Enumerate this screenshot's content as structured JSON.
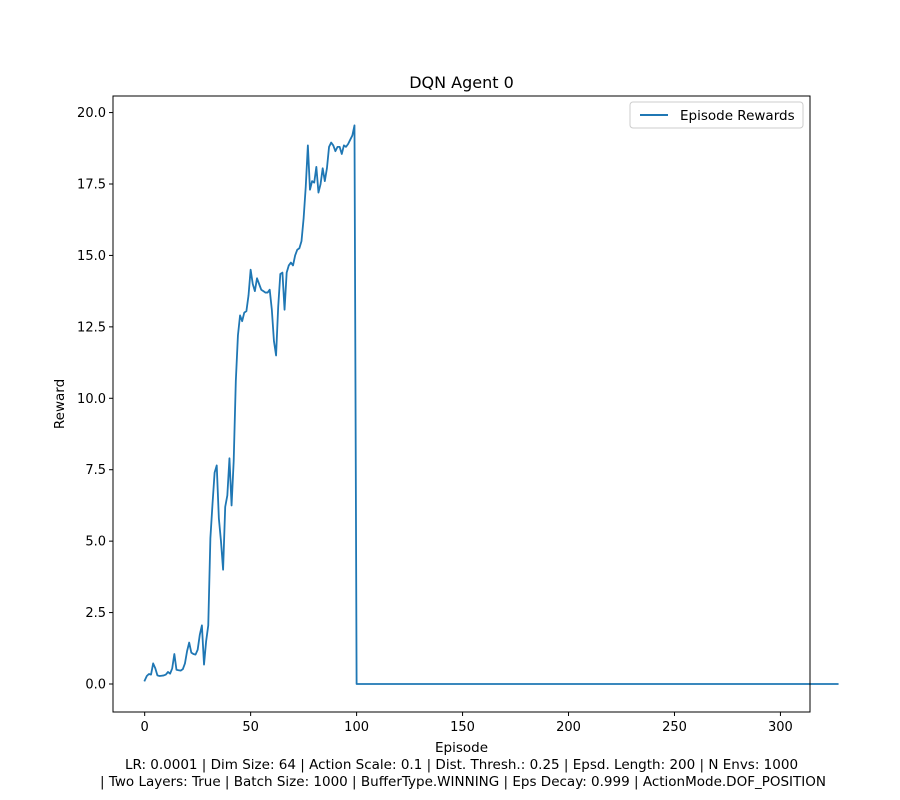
{
  "chart_data": {
    "type": "line",
    "title": "DQN Agent 0",
    "xlabel": "Episode",
    "ylabel": "Reward",
    "xlim": [
      -14.95,
      313.95
    ],
    "ylim": [
      -0.98,
      20.58
    ],
    "xticks": [
      0,
      50,
      100,
      150,
      200,
      250,
      300
    ],
    "yticks": [
      0.0,
      2.5,
      5.0,
      7.5,
      10.0,
      12.5,
      15.0,
      17.5,
      20.0
    ],
    "xtick_labels": [
      "0",
      "50",
      "100",
      "150",
      "200",
      "250",
      "300"
    ],
    "ytick_labels": [
      "0.0",
      "2.5",
      "5.0",
      "7.5",
      "10.0",
      "12.5",
      "15.0",
      "17.5",
      "20.0"
    ],
    "legend": {
      "position": "upper-right",
      "entries": [
        "Episode Rewards"
      ]
    },
    "grid": false,
    "series": [
      {
        "name": "Episode Rewards",
        "color": "#1f77b4",
        "x_start": 0,
        "values": [
          0.12,
          0.28,
          0.35,
          0.33,
          0.72,
          0.55,
          0.3,
          0.28,
          0.29,
          0.3,
          0.33,
          0.42,
          0.36,
          0.55,
          1.05,
          0.5,
          0.48,
          0.47,
          0.52,
          0.72,
          1.15,
          1.45,
          1.1,
          1.05,
          1.03,
          1.2,
          1.72,
          2.05,
          0.68,
          1.5,
          2.05,
          5.1,
          6.3,
          7.4,
          7.65,
          5.8,
          5.0,
          4.0,
          6.2,
          6.6,
          7.9,
          6.25,
          7.8,
          10.6,
          12.2,
          12.9,
          12.7,
          13.0,
          13.05,
          13.6,
          14.5,
          14.0,
          13.75,
          14.2,
          14.0,
          13.8,
          13.75,
          13.7,
          13.7,
          13.8,
          13.1,
          12.0,
          11.5,
          13.2,
          14.35,
          14.4,
          13.1,
          14.4,
          14.65,
          14.75,
          14.65,
          15.0,
          15.2,
          15.25,
          15.5,
          16.3,
          17.4,
          18.85,
          17.3,
          17.6,
          17.55,
          18.1,
          17.2,
          17.5,
          18.05,
          17.6,
          18.05,
          18.8,
          18.95,
          18.85,
          18.65,
          18.8,
          18.8,
          18.55,
          18.85,
          18.8,
          18.9,
          19.05,
          19.2,
          19.55,
          0.0,
          0.0,
          0.0,
          0.0,
          0.0,
          0.0,
          0.0,
          0.0,
          0.0,
          0.0,
          0.0,
          0.0,
          0.0,
          0.0,
          0.0,
          0.0,
          0.0,
          0.0,
          0.0,
          0.0,
          0.0,
          0.0,
          0.0,
          0.0,
          0.0,
          0.0,
          0.0,
          0.0,
          0.0,
          0.0,
          0.0,
          0.0,
          0.0,
          0.0,
          0.0,
          0.0,
          0.0,
          0.0,
          0.0,
          0.0,
          0.0,
          0.0,
          0.0,
          0.0,
          0.0,
          0.0,
          0.0,
          0.0,
          0.0,
          0.0,
          0.0,
          0.0,
          0.0,
          0.0,
          0.0,
          0.0,
          0.0,
          0.0,
          0.0,
          0.0,
          0.0,
          0.0,
          0.0,
          0.0,
          0.0,
          0.0,
          0.0,
          0.0,
          0.0,
          0.0,
          0.0,
          0.0,
          0.0,
          0.0,
          0.0,
          0.0,
          0.0,
          0.0,
          0.0,
          0.0,
          0.0,
          0.0,
          0.0,
          0.0,
          0.0,
          0.0,
          0.0,
          0.0,
          0.0,
          0.0,
          0.0,
          0.0,
          0.0,
          0.0,
          0.0,
          0.0,
          0.0,
          0.0,
          0.0,
          0.0,
          0.0,
          0.0,
          0.0,
          0.0,
          0.0,
          0.0,
          0.0,
          0.0,
          0.0,
          0.0,
          0.0,
          0.0,
          0.0,
          0.0,
          0.0,
          0.0,
          0.0,
          0.0,
          0.0,
          0.0,
          0.0,
          0.0,
          0.0,
          0.0,
          0.0,
          0.0,
          0.0,
          0.0,
          0.0,
          0.0,
          0.0,
          0.0,
          0.0,
          0.0,
          0.0,
          0.0,
          0.0,
          0.0,
          0.0,
          0.0,
          0.0,
          0.0,
          0.0,
          0.0,
          0.0,
          0.0,
          0.0,
          0.0,
          0.0,
          0.0,
          0.0,
          0.0,
          0.0,
          0.0,
          0.0,
          0.0,
          0.0,
          0.0,
          0.0,
          0.0,
          0.0,
          0.0,
          0.0,
          0.0,
          0.0,
          0.0,
          0.0,
          0.0,
          0.0,
          0.0,
          0.0,
          0.0,
          0.0,
          0.0,
          0.0,
          0.0,
          0.0,
          0.0,
          0.0,
          0.0,
          0.0,
          0.0,
          0.0,
          0.0,
          0.0,
          0.0,
          0.0,
          0.0,
          0.0,
          0.0,
          0.0,
          0.0,
          0.0,
          0.0,
          0.0,
          0.0,
          0.0,
          0.0,
          0.0,
          0.0,
          0.0,
          0.0,
          0.0,
          0.0,
          0.0,
          0.0,
          0.0,
          0.0,
          0.0,
          0.0,
          0.0,
          0.0,
          0.0,
          0.0,
          0.0,
          0.0,
          0.0,
          0.0,
          0.0,
          0.0,
          0.0,
          0.0,
          0.0,
          0.0,
          0.0,
          0.0,
          0.0,
          0.0
        ]
      }
    ]
  },
  "footer": {
    "line1": "LR: 0.0001 | Dim Size: 64 | Action Scale: 0.1 | Dist. Thresh.: 0.25 | Epsd. Length: 200 | N Envs: 1000",
    "line2": "| Two Layers: True | Batch Size: 1000 | BufferType.WINNING | Eps Decay: 0.999 | ActionMode.DOF_POSITION"
  }
}
